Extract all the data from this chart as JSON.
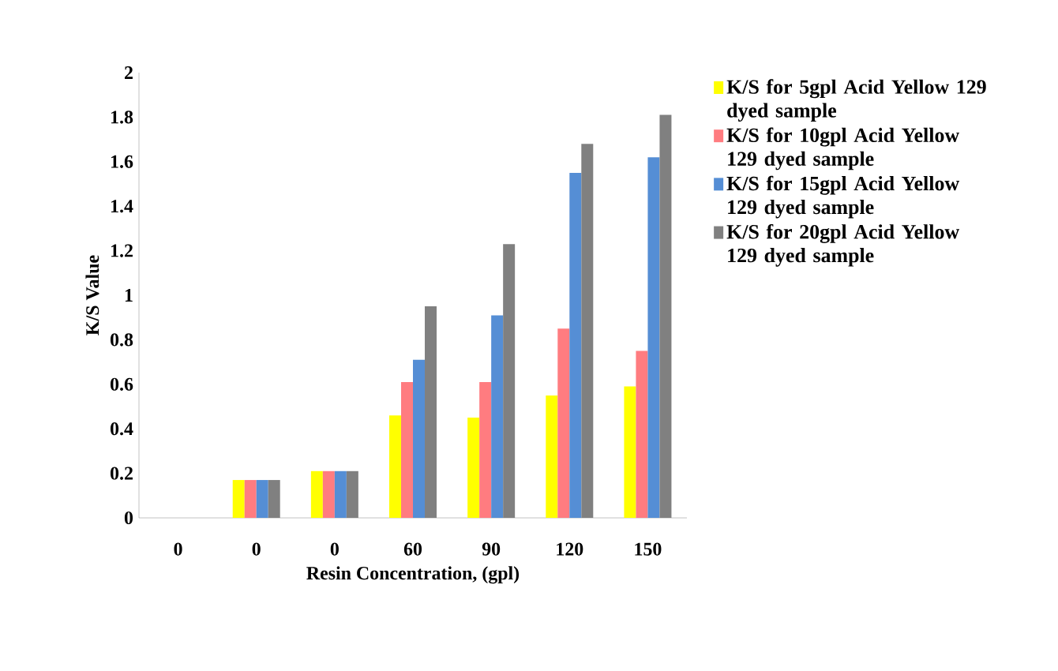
{
  "chart_data": {
    "type": "bar",
    "xlabel": "Resin Concentration, (gpl)",
    "ylabel": "K/S Value",
    "categories": [
      "0",
      "0",
      "0",
      "60",
      "90",
      "120",
      "150"
    ],
    "series": [
      {
        "name": "K/S for 5gpl Acid Yellow 129 dyed sample",
        "color": "#ffff00",
        "values": [
          null,
          0.17,
          0.21,
          0.46,
          0.45,
          0.55,
          0.59
        ]
      },
      {
        "name": "K/S for 10gpl Acid Yellow 129 dyed sample",
        "color": "#ff7c80",
        "values": [
          null,
          0.17,
          0.21,
          0.61,
          0.61,
          0.85,
          0.75
        ]
      },
      {
        "name": "K/S for 15gpl Acid Yellow 129 dyed sample",
        "color": "#558ed5",
        "values": [
          null,
          0.17,
          0.21,
          0.71,
          0.91,
          1.55,
          1.62
        ]
      },
      {
        "name": "K/S for 20gpl Acid Yellow 129 dyed sample",
        "color": "#808080",
        "values": [
          null,
          0.17,
          0.21,
          0.95,
          1.23,
          1.68,
          1.81
        ]
      }
    ],
    "ylim": [
      0,
      2
    ],
    "yticks": [
      0,
      0.2,
      0.4,
      0.6,
      0.8,
      1,
      1.2,
      1.4,
      1.6,
      1.8,
      2
    ],
    "legend": "right",
    "grid": false
  }
}
